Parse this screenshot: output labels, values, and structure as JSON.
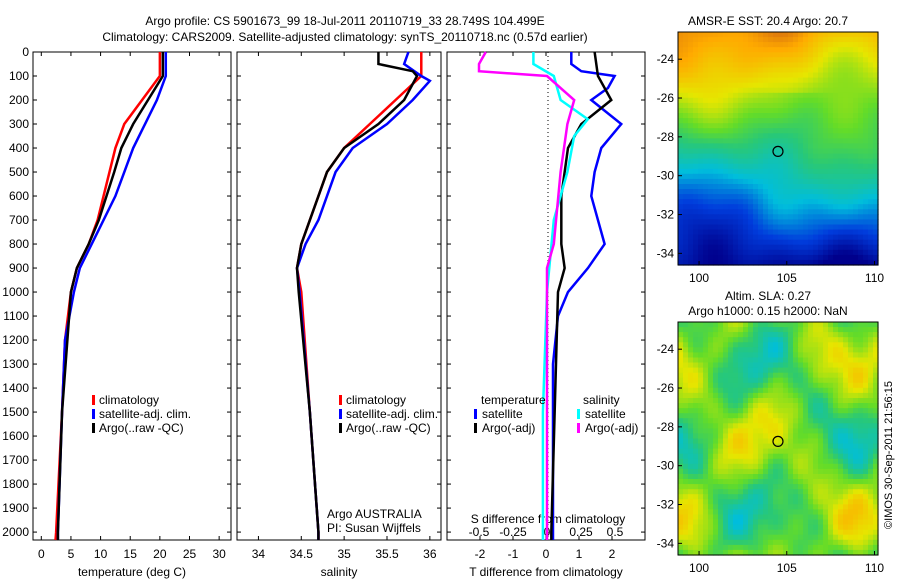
{
  "title_line1": "Argo profile: CS 5901673_99 18-Jul-2011 20110719_33 28.749S 104.499E",
  "title_line2": "Climatology: CARS2009. Satellite-adjusted climatology: synTS_20110718.nc (0.57d earlier)",
  "side_stamp": "©IMOS 30-Sep-2011 21:56:15",
  "colors": {
    "climatology": "#ff0000",
    "satellite": "#0000ff",
    "argo": "#000000",
    "s_satellite": "#00ffff",
    "s_argo": "#ff00ff"
  },
  "chart_data": [
    {
      "type": "line",
      "name": "temperature-profile",
      "xlabel": "temperature (deg C)",
      "xticks": [
        0,
        5,
        10,
        15,
        20,
        25,
        30
      ],
      "yticks": [
        0,
        100,
        200,
        300,
        400,
        500,
        600,
        700,
        800,
        900,
        1000,
        1100,
        1200,
        1300,
        1400,
        1500,
        1600,
        1700,
        1800,
        1900,
        2000
      ],
      "ylim": [
        0,
        2033
      ],
      "xlim": [
        -1.4,
        32
      ],
      "legend": [
        "climatology",
        "satellite-adj. clim.",
        "Argo(..raw -QC)"
      ],
      "series": [
        {
          "name": "climatology",
          "color": "#ff0000",
          "depth": [
            0,
            100,
            200,
            300,
            400,
            500,
            600,
            700,
            800,
            900,
            1000,
            1200,
            1500,
            2000,
            2033
          ],
          "values": [
            20,
            20,
            17,
            14,
            12.5,
            11.5,
            10.5,
            9.5,
            8,
            6,
            5,
            4,
            3.5,
            2.5,
            2.4
          ]
        },
        {
          "name": "satellite-adj. clim.",
          "color": "#0000ff",
          "depth": [
            0,
            100,
            200,
            300,
            400,
            500,
            600,
            700,
            800,
            900,
            1000,
            1200,
            1500,
            2000,
            2033
          ],
          "values": [
            21,
            21,
            19.5,
            17.5,
            15.5,
            14,
            12.5,
            10.5,
            8.5,
            6.5,
            5.5,
            4,
            3.5,
            2.8,
            2.8
          ]
        },
        {
          "name": "Argo(..raw -QC)",
          "color": "#000000",
          "depth": [
            0,
            100,
            200,
            300,
            400,
            500,
            600,
            700,
            800,
            900,
            1000,
            1500,
            2000,
            2033
          ],
          "values": [
            20.5,
            20.5,
            18,
            15.5,
            13.5,
            12.3,
            11,
            9.7,
            8,
            6,
            5,
            3.5,
            2.8,
            2.8
          ]
        }
      ]
    },
    {
      "type": "line",
      "name": "salinity-profile",
      "xlabel": "salinity",
      "xticks": [
        34,
        34.5,
        35,
        35.5,
        36
      ],
      "ylim": [
        0,
        2033
      ],
      "xlim": [
        33.75,
        36.13
      ],
      "legend": [
        "climatology",
        "satellite-adj. clim.",
        "Argo(..raw -QC)"
      ],
      "annotation": [
        "Argo AUSTRALIA",
        "PI: Susan Wijffels"
      ],
      "series": [
        {
          "name": "climatology",
          "color": "#ff0000",
          "depth": [
            0,
            100,
            200,
            300,
            400,
            500,
            600,
            700,
            800,
            900,
            1000,
            1500,
            2000,
            2033
          ],
          "values": [
            35.9,
            35.9,
            35.6,
            35.3,
            35,
            34.8,
            34.7,
            34.6,
            34.5,
            34.45,
            34.5,
            34.6,
            34.7,
            34.7
          ]
        },
        {
          "name": "satellite-adj. clim.",
          "color": "#0000ff",
          "depth": [
            0,
            50,
            100,
            120,
            200,
            300,
            400,
            500,
            600,
            700,
            800,
            900,
            1000,
            1500,
            2000,
            2033
          ],
          "values": [
            35.75,
            35.7,
            35.9,
            36.0,
            35.8,
            35.5,
            35.1,
            34.9,
            34.8,
            34.7,
            34.55,
            34.45,
            34.48,
            34.6,
            34.7,
            34.7
          ]
        },
        {
          "name": "Argo(..raw -QC)",
          "color": "#000000",
          "depth": [
            0,
            50,
            80,
            100,
            200,
            300,
            400,
            500,
            600,
            700,
            800,
            900,
            1000,
            1500,
            2000,
            2033
          ],
          "values": [
            35.4,
            35.4,
            35.8,
            35.85,
            35.7,
            35.4,
            35.0,
            34.8,
            34.7,
            34.6,
            34.5,
            34.45,
            34.47,
            34.6,
            34.7,
            34.7
          ]
        }
      ]
    },
    {
      "type": "line",
      "name": "difference-profile",
      "xlabel": "T difference from climatology",
      "xlabel2": "S difference from climatology",
      "xticks": [
        -2,
        -1,
        0,
        1,
        2
      ],
      "xticks2": [
        -0.5,
        -0.25,
        0,
        0.25,
        0.5
      ],
      "xtick2_labels": [
        "-0.5",
        "-0.25",
        "0",
        "0.25",
        "0.5"
      ],
      "ylim": [
        0,
        2033
      ],
      "xlim": [
        -3,
        3
      ],
      "legend_t_title": "temperature",
      "legend_s_title": "salinity",
      "legend": [
        "satellite",
        "Argo(-adj)",
        "satellite",
        "Argo(-adj)"
      ],
      "series": [
        {
          "name": "T satellite",
          "color": "#0000ff",
          "axis": "T",
          "depth": [
            0,
            50,
            80,
            100,
            150,
            200,
            300,
            400,
            500,
            600,
            800,
            900,
            1000,
            1100,
            1300,
            2000,
            2033
          ],
          "values": [
            0.7,
            0.7,
            1.0,
            2.0,
            1.8,
            1.3,
            2.2,
            1.6,
            1.4,
            1.3,
            1.7,
            1.2,
            0.6,
            0.3,
            0.15,
            0.15,
            0.15
          ]
        },
        {
          "name": "T Argo(-adj)",
          "color": "#000000",
          "axis": "T",
          "depth": [
            0,
            100,
            200,
            300,
            400,
            600,
            800,
            900,
            1000,
            2000,
            2033
          ],
          "values": [
            1.4,
            1.5,
            1.9,
            1.0,
            0.6,
            0.4,
            0.4,
            0.5,
            0.3,
            0.1,
            0.1
          ]
        },
        {
          "name": "S satellite",
          "color": "#00ffff",
          "axis": "S",
          "depth": [
            0,
            50,
            100,
            200,
            280,
            350,
            500,
            700,
            1000,
            1500,
            2000,
            2033
          ],
          "values": [
            -0.1,
            -0.1,
            0.05,
            0.1,
            0.3,
            0.2,
            0.15,
            0.05,
            0,
            -0.03,
            -0.03,
            -0.03
          ]
        },
        {
          "name": "S Argo(-adj)",
          "color": "#ff00ff",
          "axis": "S",
          "depth": [
            0,
            50,
            80,
            100,
            200,
            300,
            500,
            800,
            900,
            1500,
            2000,
            2033
          ],
          "values": [
            -0.45,
            -0.5,
            -0.5,
            0,
            0.2,
            0.15,
            0.1,
            0.05,
            0,
            0,
            0,
            0
          ]
        }
      ]
    },
    {
      "type": "heatmap",
      "name": "sst-map",
      "title": "AMSR-E SST: 20.4 Argo: 20.7",
      "xticks": [
        100,
        105,
        110
      ],
      "yticks": [
        -24,
        -26,
        -28,
        -30,
        -32,
        -34
      ],
      "xlim": [
        98.8,
        110.2
      ],
      "ylim": [
        -34.6,
        -22.6
      ],
      "marker": [
        104.499,
        -28.749
      ]
    },
    {
      "type": "heatmap",
      "name": "sla-map",
      "title_line1": "Altim. SLA: 0.27",
      "title_line2": "Argo h1000: 0.15 h2000: NaN",
      "xticks": [
        100,
        105,
        110
      ],
      "yticks": [
        -24,
        -26,
        -28,
        -30,
        -32,
        -34
      ],
      "xlim": [
        98.8,
        110.2
      ],
      "ylim": [
        -34.6,
        -22.6
      ],
      "marker": [
        104.499,
        -28.749
      ]
    }
  ]
}
